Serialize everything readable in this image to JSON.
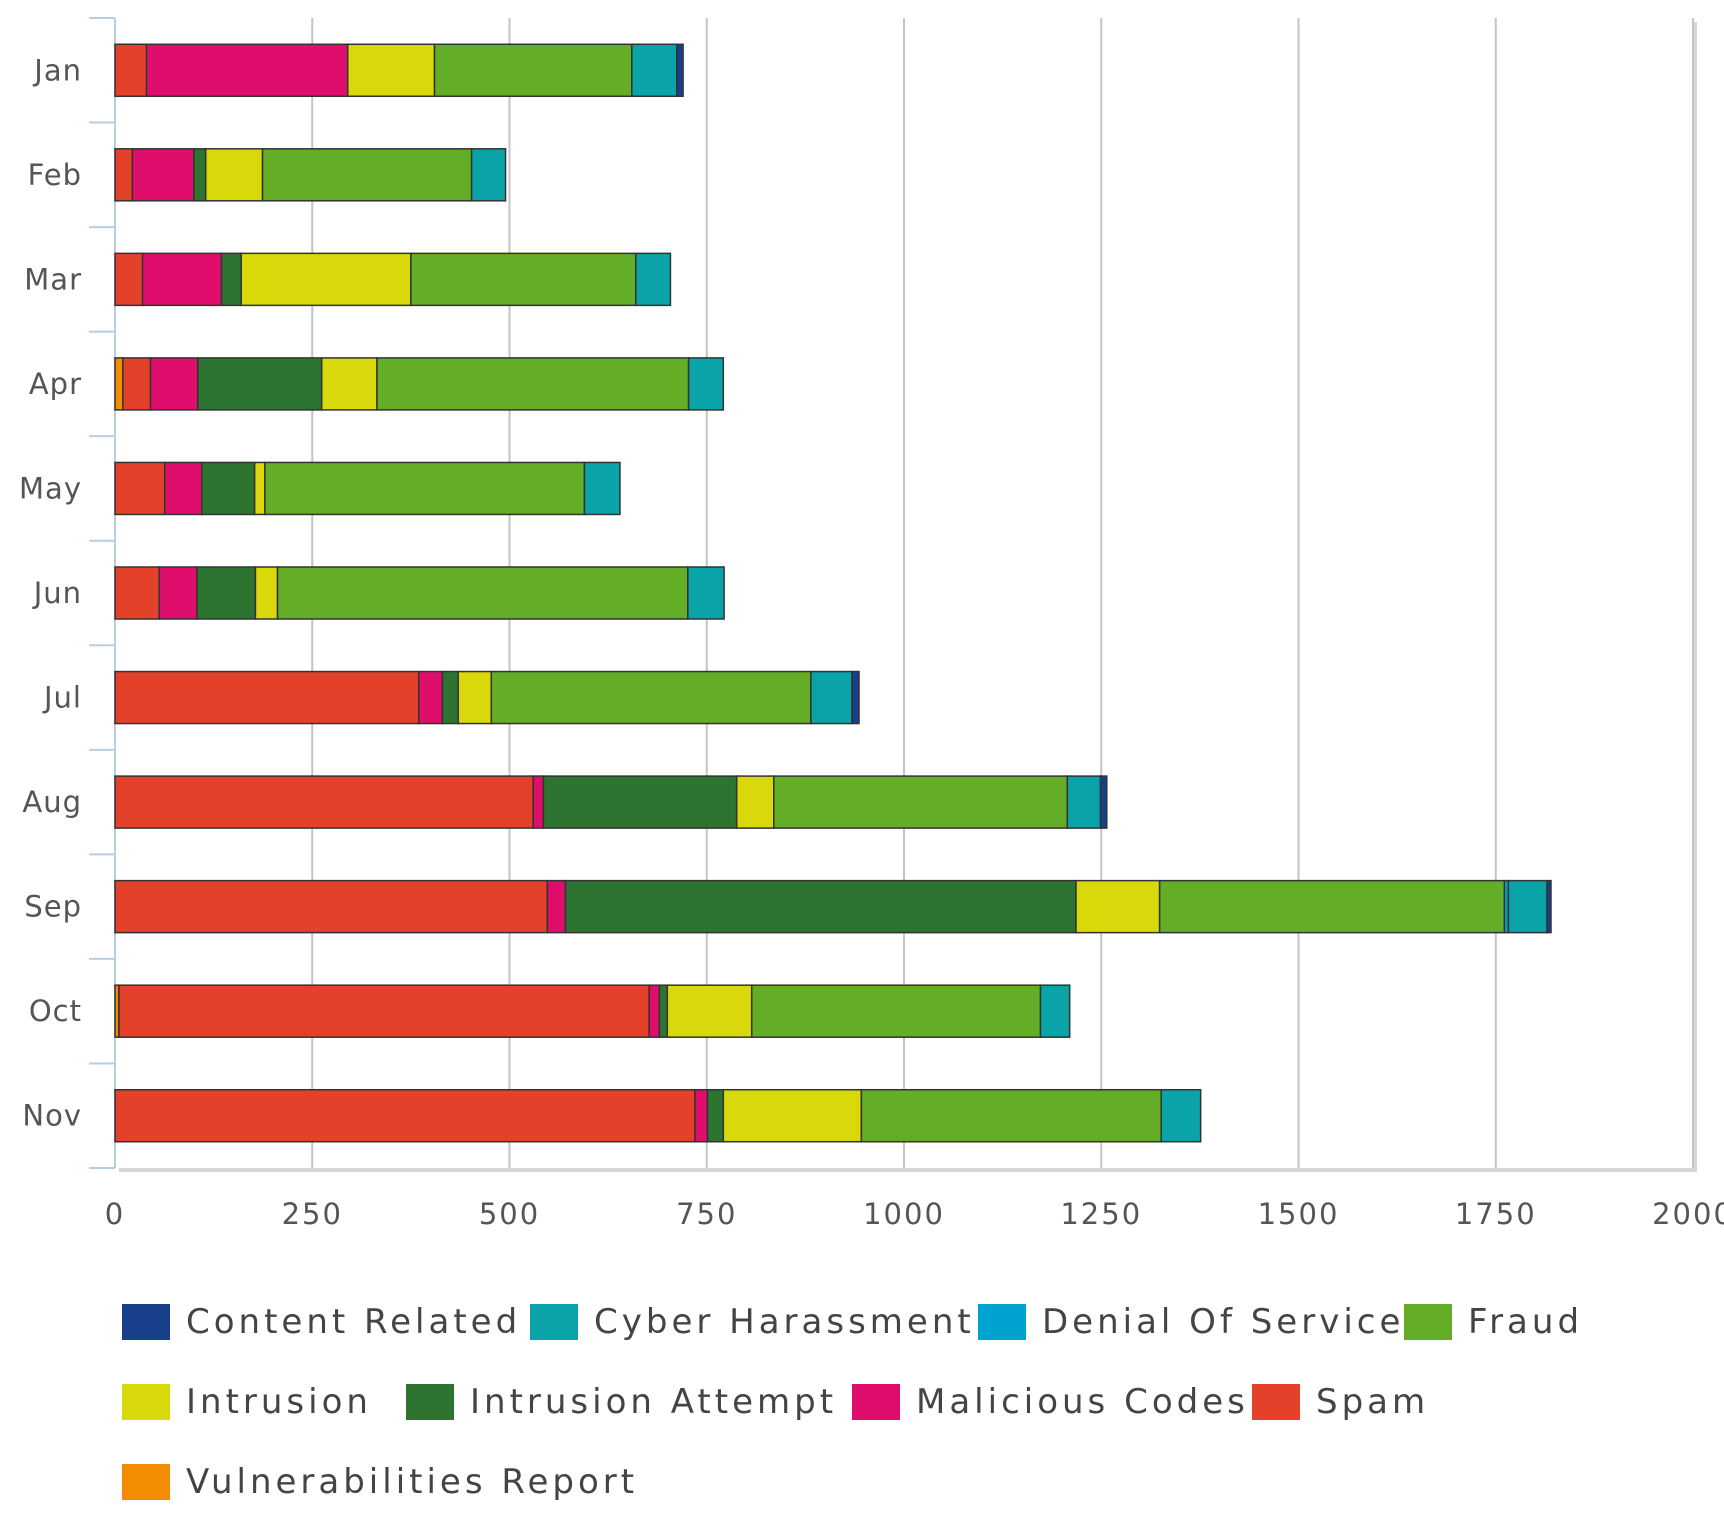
{
  "chart_data": {
    "type": "bar",
    "orientation": "horizontal",
    "stacked": true,
    "categories": [
      "Jan",
      "Feb",
      "Mar",
      "Apr",
      "May",
      "Jun",
      "Jul",
      "Aug",
      "Sep",
      "Oct",
      "Nov"
    ],
    "xlim": [
      0,
      2000
    ],
    "xticks": [
      "0",
      "250",
      "500",
      "750",
      "1000",
      "1250",
      "1500",
      "1750",
      "2000"
    ],
    "grid": true,
    "legend_position": "bottom",
    "series": [
      {
        "name": "Vulnerabilities Report",
        "color": "#f28c00",
        "values": [
          0,
          0,
          0,
          10,
          0,
          0,
          0,
          0,
          0,
          5,
          0
        ]
      },
      {
        "name": "Spam",
        "color": "#e4412b",
        "values": [
          40,
          22,
          35,
          35,
          63,
          56,
          385,
          530,
          548,
          672,
          735
        ]
      },
      {
        "name": "Malicious Codes",
        "color": "#df0e6c",
        "values": [
          255,
          78,
          100,
          60,
          47,
          48,
          30,
          13,
          23,
          13,
          16
        ]
      },
      {
        "name": "Intrusion Attempt",
        "color": "#2e7431",
        "values": [
          0,
          15,
          25,
          157,
          67,
          74,
          20,
          245,
          647,
          10,
          20
        ]
      },
      {
        "name": "Intrusion",
        "color": "#d8d80a",
        "values": [
          110,
          72,
          215,
          70,
          13,
          28,
          42,
          47,
          106,
          107,
          175
        ]
      },
      {
        "name": "Fraud",
        "color": "#63ad27",
        "values": [
          250,
          265,
          285,
          395,
          405,
          520,
          405,
          372,
          437,
          366,
          380
        ]
      },
      {
        "name": "Denial Of Service",
        "color": "#00a2d0",
        "values": [
          0,
          0,
          0,
          0,
          0,
          0,
          0,
          0,
          5,
          0,
          0
        ]
      },
      {
        "name": "Cyber Harassment",
        "color": "#0aa3a8",
        "values": [
          57,
          43,
          44,
          44,
          45,
          46,
          52,
          42,
          49,
          37,
          50
        ]
      },
      {
        "name": "Content Related",
        "color": "#173f8a",
        "values": [
          8,
          0,
          0,
          0,
          0,
          0,
          9,
          8,
          5,
          0,
          0
        ]
      }
    ]
  },
  "legend": {
    "items": [
      {
        "label": "Content Related",
        "color": "#173f8a"
      },
      {
        "label": "Cyber Harassment",
        "color": "#0aa3a8"
      },
      {
        "label": "Denial Of Service",
        "color": "#00a2d0"
      },
      {
        "label": "Fraud",
        "color": "#63ad27"
      },
      {
        "label": "Intrusion",
        "color": "#d8d80a"
      },
      {
        "label": "Intrusion Attempt",
        "color": "#2e7431"
      },
      {
        "label": "Malicious Codes",
        "color": "#df0e6c"
      },
      {
        "label": "Spam",
        "color": "#e4412b"
      },
      {
        "label": "Vulnerabilities Report",
        "color": "#f28c00"
      }
    ]
  }
}
